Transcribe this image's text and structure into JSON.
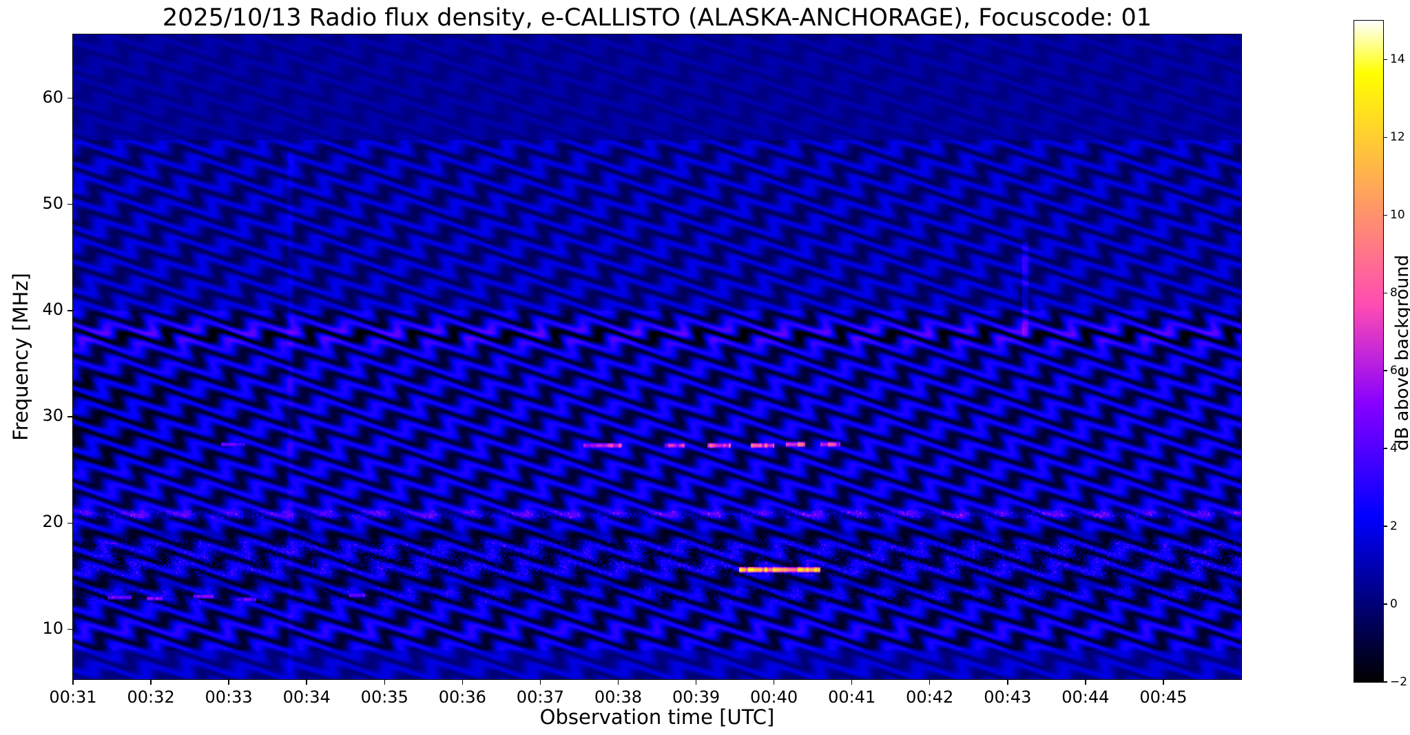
{
  "figure": {
    "background": "#ffffff"
  },
  "chart_data": {
    "type": "heatmap",
    "subtype": "radio-spectrogram",
    "title": "2025/10/13  Radio flux density, e-CALLISTO (ALASKA-ANCHORAGE), Focuscode: 01",
    "xlabel": "Observation time [UTC]",
    "ylabel": "Frequency [MHz]",
    "x_ticks": [
      "00:31",
      "00:32",
      "00:33",
      "00:34",
      "00:35",
      "00:36",
      "00:37",
      "00:38",
      "00:39",
      "00:40",
      "00:41",
      "00:42",
      "00:43",
      "00:44",
      "00:45"
    ],
    "x_span_minutes": 15,
    "x_start": "00:31",
    "y_ticks": [
      10,
      20,
      30,
      40,
      50,
      60
    ],
    "ylim": [
      5.3,
      66.0
    ],
    "grid": false,
    "legend": "none",
    "colorbar": {
      "label": "dB above background",
      "ticks": [
        -2,
        0,
        2,
        4,
        6,
        8,
        10,
        12,
        14
      ],
      "tick_labels": [
        "−2",
        "0",
        "2",
        "4",
        "6",
        "8",
        "10",
        "12",
        "14"
      ],
      "vmin": -2,
      "vmax": 15,
      "colormap": "gnuplot2",
      "position": "right"
    },
    "noise": {
      "base_levels": [
        [
          5.3,
          8,
          0.9
        ],
        [
          8,
          20,
          0.75
        ],
        [
          20,
          40,
          0.85
        ],
        [
          40,
          56,
          0.7
        ],
        [
          56,
          66,
          0.55
        ]
      ],
      "fringe_amp": [
        [
          5.3,
          8,
          0.9
        ],
        [
          8,
          40,
          2.0
        ],
        [
          40,
          56,
          1.2
        ],
        [
          56,
          66,
          0.35
        ]
      ],
      "fringe_wavelength_mhz": 1.9,
      "wobble": {
        "amp_mhz": 0.55,
        "period_min": 0.62,
        "freq_phase": 2.1,
        "amp2_mhz": 0.25,
        "period2_min": 1.7,
        "freq_phase2": 0.8
      },
      "pixel_noise": 0.25
    },
    "bands": [
      {
        "f": 37.7,
        "sigma": 0.9,
        "amp_boost": 1.2,
        "base_boost": 0.3,
        "note": "strong wavy interference band"
      },
      {
        "f": 20.8,
        "sigma": 0.35,
        "amp_boost": 0.0,
        "base_boost": 1.5,
        "note": "narrow speckled bright line"
      },
      {
        "f": 18.9,
        "sigma": 0.4,
        "amp_boost": -0.6,
        "base_boost": -0.9,
        "note": "dark band"
      },
      {
        "f": 14.25,
        "sigma": 0.4,
        "amp_boost": -0.5,
        "base_boost": -0.8,
        "note": "dark band"
      },
      {
        "f": 9.9,
        "sigma": 0.8,
        "amp_boost": 0.3,
        "base_boost": 0.2,
        "note": "bright low-frequency band"
      }
    ],
    "speckle_zones": [
      {
        "f0": 20.4,
        "f1": 21.2,
        "density": 0.22,
        "gain": 2.6
      },
      {
        "f0": 15.0,
        "f1": 18.4,
        "density": 0.16,
        "gain": 2.4
      },
      {
        "f0": 12.4,
        "f1": 14.0,
        "density": 0.1,
        "gain": 2.0
      }
    ],
    "bursts": [
      {
        "t0": 6.55,
        "t1": 7.05,
        "f": 27.3,
        "height": 0.5,
        "db": 7.0
      },
      {
        "t0": 7.6,
        "t1": 7.85,
        "f": 27.3,
        "height": 0.5,
        "db": 6.5
      },
      {
        "t0": 8.15,
        "t1": 8.45,
        "f": 27.3,
        "height": 0.5,
        "db": 7.5
      },
      {
        "t0": 8.7,
        "t1": 9.0,
        "f": 27.3,
        "height": 0.5,
        "db": 8.0
      },
      {
        "t0": 9.15,
        "t1": 9.4,
        "f": 27.4,
        "height": 0.5,
        "db": 8.5
      },
      {
        "t0": 9.6,
        "t1": 9.85,
        "f": 27.4,
        "height": 0.5,
        "db": 7.0
      },
      {
        "t0": 1.9,
        "t1": 2.2,
        "f": 27.4,
        "height": 0.4,
        "db": 4.5
      },
      {
        "t0": 8.55,
        "t1": 9.6,
        "f": 15.6,
        "height": 0.5,
        "db": 11.5
      },
      {
        "t0": 0.45,
        "t1": 0.75,
        "f": 13.0,
        "height": 0.4,
        "db": 5.0
      },
      {
        "t0": 0.95,
        "t1": 1.15,
        "f": 12.9,
        "height": 0.4,
        "db": 5.5
      },
      {
        "t0": 1.55,
        "t1": 1.8,
        "f": 13.1,
        "height": 0.4,
        "db": 5.0
      },
      {
        "t0": 2.1,
        "t1": 2.35,
        "f": 12.8,
        "height": 0.4,
        "db": 4.5
      },
      {
        "t0": 3.55,
        "t1": 3.75,
        "f": 13.2,
        "height": 0.4,
        "db": 4.5
      }
    ],
    "vlines": [
      {
        "t": 12.23,
        "f0": 37.5,
        "f1": 46.5,
        "add_db": 1.6
      },
      {
        "t": 2.79,
        "f0": 6.0,
        "f1": 55.0,
        "add_db": 0.6
      }
    ],
    "patches": [
      {
        "t0": 0.0,
        "t1": 2.8,
        "f0": 25.0,
        "f1": 34.0,
        "add_db": -0.55,
        "fade": "left"
      }
    ]
  }
}
